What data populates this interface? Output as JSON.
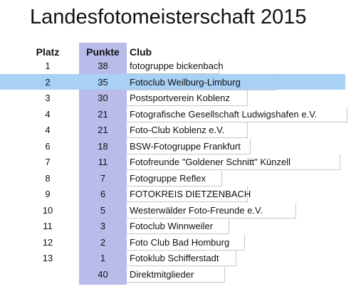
{
  "title": "Landesfotomeisterschaft 2015",
  "headers": {
    "platz": "Platz",
    "punkte": "Punkte",
    "club": "Club"
  },
  "colors": {
    "points_column": "#b9bceb",
    "highlight_row": "#a9d0f5"
  },
  "rows": [
    {
      "platz": "1",
      "punkte": "38",
      "club": "fotogruppe bickenbach"
    },
    {
      "platz": "2",
      "punkte": "35",
      "club": "Fotoclub Weilburg-Limburg",
      "highlighted": true
    },
    {
      "platz": "3",
      "punkte": "30",
      "club": "Postsportverein Koblenz"
    },
    {
      "platz": "4",
      "punkte": "21",
      "club": "Fotografische Gesellschaft Ludwigshafen e.V."
    },
    {
      "platz": "4",
      "punkte": "21",
      "club": "Foto-Club Koblenz e.V."
    },
    {
      "platz": "6",
      "punkte": "18",
      "club": "BSW-Fotogruppe Frankfurt"
    },
    {
      "platz": "7",
      "punkte": "11",
      "club": "Fotofreunde \"Goldener Schnitt\" Künzell"
    },
    {
      "platz": "8",
      "punkte": "7",
      "club": "Fotogruppe Reflex"
    },
    {
      "platz": "9",
      "punkte": "6",
      "club": "FOTOKREIS DIETZENBACH"
    },
    {
      "platz": "10",
      "punkte": "5",
      "club": "Westerwälder Foto-Freunde e.V."
    },
    {
      "platz": "11",
      "punkte": "3",
      "club": "Fotoclub Winnweiler"
    },
    {
      "platz": "12",
      "punkte": "2",
      "club": "Foto Club Bad Homburg"
    },
    {
      "platz": "13",
      "punkte": "1",
      "club": "Fotoklub Schifferstadt"
    },
    {
      "platz": "",
      "punkte": "40",
      "club": "Direktmitglieder"
    }
  ]
}
